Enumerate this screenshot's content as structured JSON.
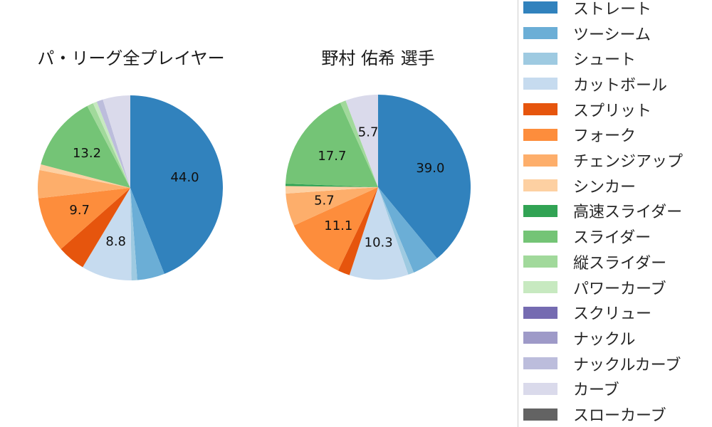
{
  "titles": {
    "left": "パ・リーグ全プレイヤー",
    "right": "野村 佑希 選手"
  },
  "legend": {
    "items": [
      {
        "key": "straight",
        "label": "ストレート",
        "color": "#3182bd"
      },
      {
        "key": "two-seam",
        "label": "ツーシーム",
        "color": "#6baed6"
      },
      {
        "key": "shoot",
        "label": "シュート",
        "color": "#9ecae1"
      },
      {
        "key": "cut-ball",
        "label": "カットボール",
        "color": "#c6dbef"
      },
      {
        "key": "split",
        "label": "スプリット",
        "color": "#e6550d"
      },
      {
        "key": "fork",
        "label": "フォーク",
        "color": "#fd8d3c"
      },
      {
        "key": "changeup",
        "label": "チェンジアップ",
        "color": "#fdae6b"
      },
      {
        "key": "sinker",
        "label": "シンカー",
        "color": "#fdd0a2"
      },
      {
        "key": "fast-slider",
        "label": "高速スライダー",
        "color": "#31a354"
      },
      {
        "key": "slider",
        "label": "スライダー",
        "color": "#74c476"
      },
      {
        "key": "vertical-slider",
        "label": "縦スライダー",
        "color": "#a1d99b"
      },
      {
        "key": "power-curve",
        "label": "パワーカーブ",
        "color": "#c7e9c0"
      },
      {
        "key": "screw",
        "label": "スクリュー",
        "color": "#756bb1"
      },
      {
        "key": "knuckle",
        "label": "ナックル",
        "color": "#9e9ac8"
      },
      {
        "key": "knuckle-curve",
        "label": "ナックルカーブ",
        "color": "#bcbddc"
      },
      {
        "key": "curve",
        "label": "カーブ",
        "color": "#dadaeb"
      },
      {
        "key": "slow-curve",
        "label": "スローカーブ",
        "color": "#636363"
      }
    ]
  },
  "chart_data": [
    {
      "type": "pie",
      "title": "パ・リーグ全プレイヤー",
      "start": "12-oclock",
      "direction": "clockwise",
      "label_distance": 0.6,
      "units": "percent",
      "slices": [
        {
          "key": "straight",
          "name": "ストレート",
          "color": "#3182bd",
          "value": 44.0,
          "label": "44.0"
        },
        {
          "key": "two-seam",
          "name": "ツーシーム",
          "color": "#6baed6",
          "value": 4.8,
          "label": null
        },
        {
          "key": "shoot",
          "name": "シュート",
          "color": "#9ecae1",
          "value": 1.0,
          "label": null
        },
        {
          "key": "cut-ball",
          "name": "カットボール",
          "color": "#c6dbef",
          "value": 8.8,
          "label": "8.8"
        },
        {
          "key": "split",
          "name": "スプリット",
          "color": "#e6550d",
          "value": 4.9,
          "label": null
        },
        {
          "key": "fork",
          "name": "フォーク",
          "color": "#fd8d3c",
          "value": 9.7,
          "label": "9.7"
        },
        {
          "key": "changeup",
          "name": "チェンジアップ",
          "color": "#fdae6b",
          "value": 4.9,
          "label": null
        },
        {
          "key": "sinker",
          "name": "シンカー",
          "color": "#fdd0a2",
          "value": 1.0,
          "label": null
        },
        {
          "key": "slider",
          "name": "スライダー",
          "color": "#74c476",
          "value": 13.2,
          "label": "13.2"
        },
        {
          "key": "vertical-slider",
          "name": "縦スライダー",
          "color": "#a1d99b",
          "value": 1.1,
          "label": null
        },
        {
          "key": "power-curve",
          "name": "パワーカーブ",
          "color": "#c7e9c0",
          "value": 0.7,
          "label": null
        },
        {
          "key": "knuckle-curve",
          "name": "ナックルカーブ",
          "color": "#bcbddc",
          "value": 1.1,
          "label": null
        },
        {
          "key": "curve",
          "name": "カーブ",
          "color": "#dadaeb",
          "value": 4.8,
          "label": null
        }
      ]
    },
    {
      "type": "pie",
      "title": "野村 佑希 選手",
      "start": "12-oclock",
      "direction": "clockwise",
      "label_distance": 0.6,
      "units": "percent",
      "slices": [
        {
          "key": "straight",
          "name": "ストレート",
          "color": "#3182bd",
          "value": 39.0,
          "label": "39.0"
        },
        {
          "key": "two-seam",
          "name": "ツーシーム",
          "color": "#6baed6",
          "value": 4.7,
          "label": null
        },
        {
          "key": "shoot",
          "name": "シュート",
          "color": "#9ecae1",
          "value": 1.0,
          "label": null
        },
        {
          "key": "cut-ball",
          "name": "カットボール",
          "color": "#c6dbef",
          "value": 10.3,
          "label": "10.3"
        },
        {
          "key": "split",
          "name": "スプリット",
          "color": "#e6550d",
          "value": 2.1,
          "label": null
        },
        {
          "key": "fork",
          "name": "フォーク",
          "color": "#fd8d3c",
          "value": 11.1,
          "label": "11.1"
        },
        {
          "key": "changeup",
          "name": "チェンジアップ",
          "color": "#fdae6b",
          "value": 5.7,
          "label": "5.7"
        },
        {
          "key": "sinker",
          "name": "シンカー",
          "color": "#fdd0a2",
          "value": 1.3,
          "label": null
        },
        {
          "key": "fast-slider",
          "name": "高速スライダー",
          "color": "#31a354",
          "value": 0.4,
          "label": null
        },
        {
          "key": "slider",
          "name": "スライダー",
          "color": "#74c476",
          "value": 17.7,
          "label": "17.7"
        },
        {
          "key": "vertical-slider",
          "name": "縦スライダー",
          "color": "#a1d99b",
          "value": 1.0,
          "label": null
        },
        {
          "key": "curve",
          "name": "カーブ",
          "color": "#dadaeb",
          "value": 5.7,
          "label": "5.7"
        }
      ]
    }
  ]
}
